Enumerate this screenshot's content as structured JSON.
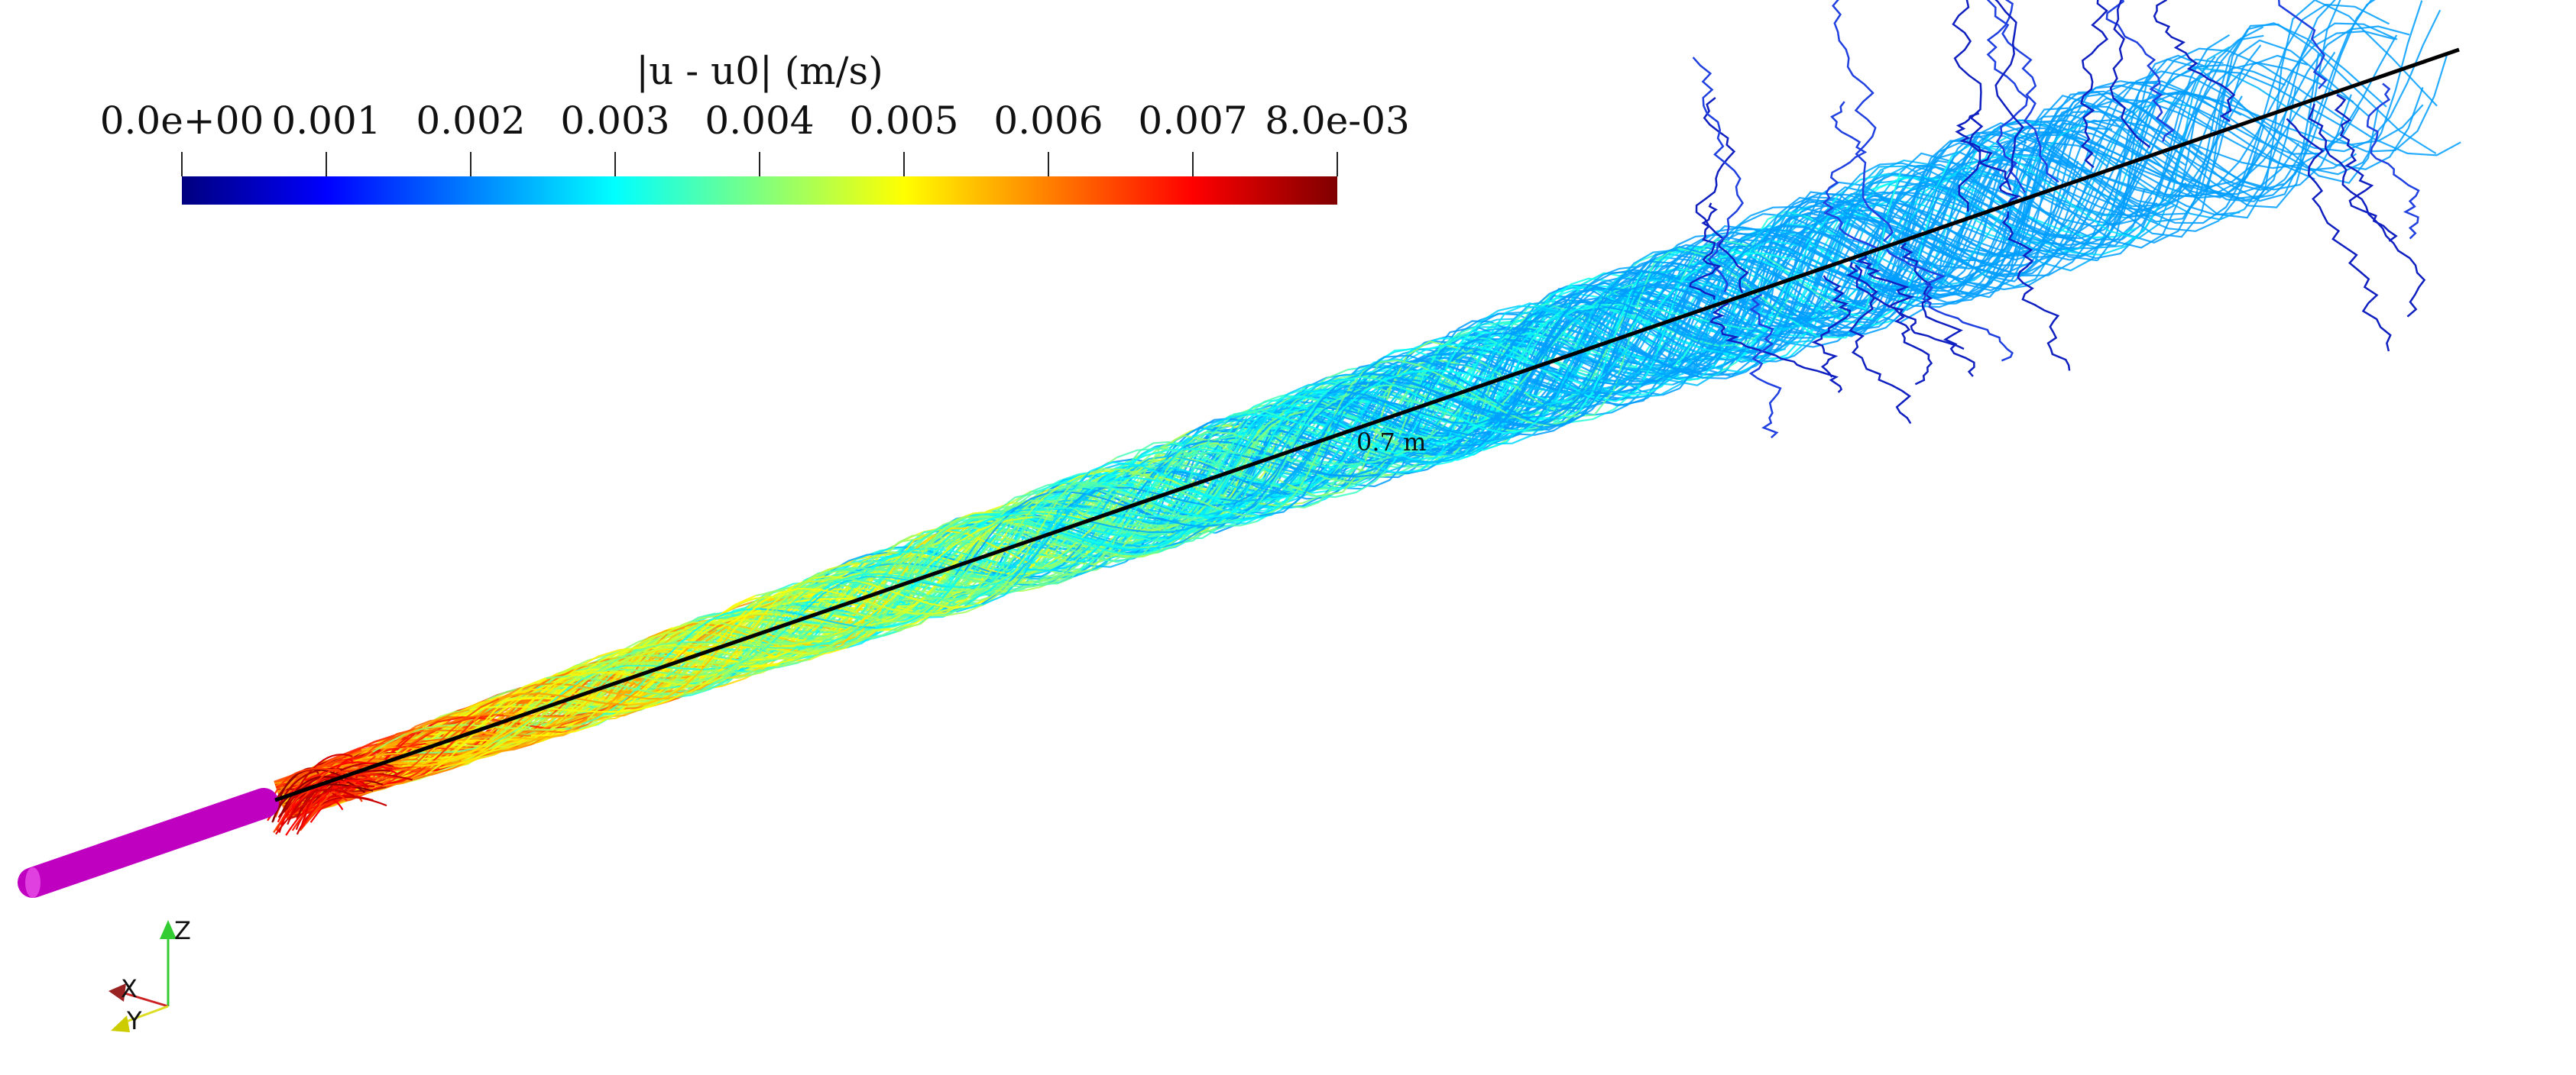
{
  "colorbar": {
    "title": "|u - u0| (m/s)",
    "range": [
      0,
      0.008
    ],
    "ticks": [
      {
        "value": 0,
        "label": "0.0e+00"
      },
      0.001,
      0.002,
      0.003,
      0.004,
      0.005,
      0.006,
      0.007,
      {
        "value": 0.008,
        "label": "8.0e-03"
      }
    ]
  },
  "ruler_label": "0.7 m",
  "axes": {
    "x": "X",
    "y": "Y",
    "z": "Z"
  }
}
